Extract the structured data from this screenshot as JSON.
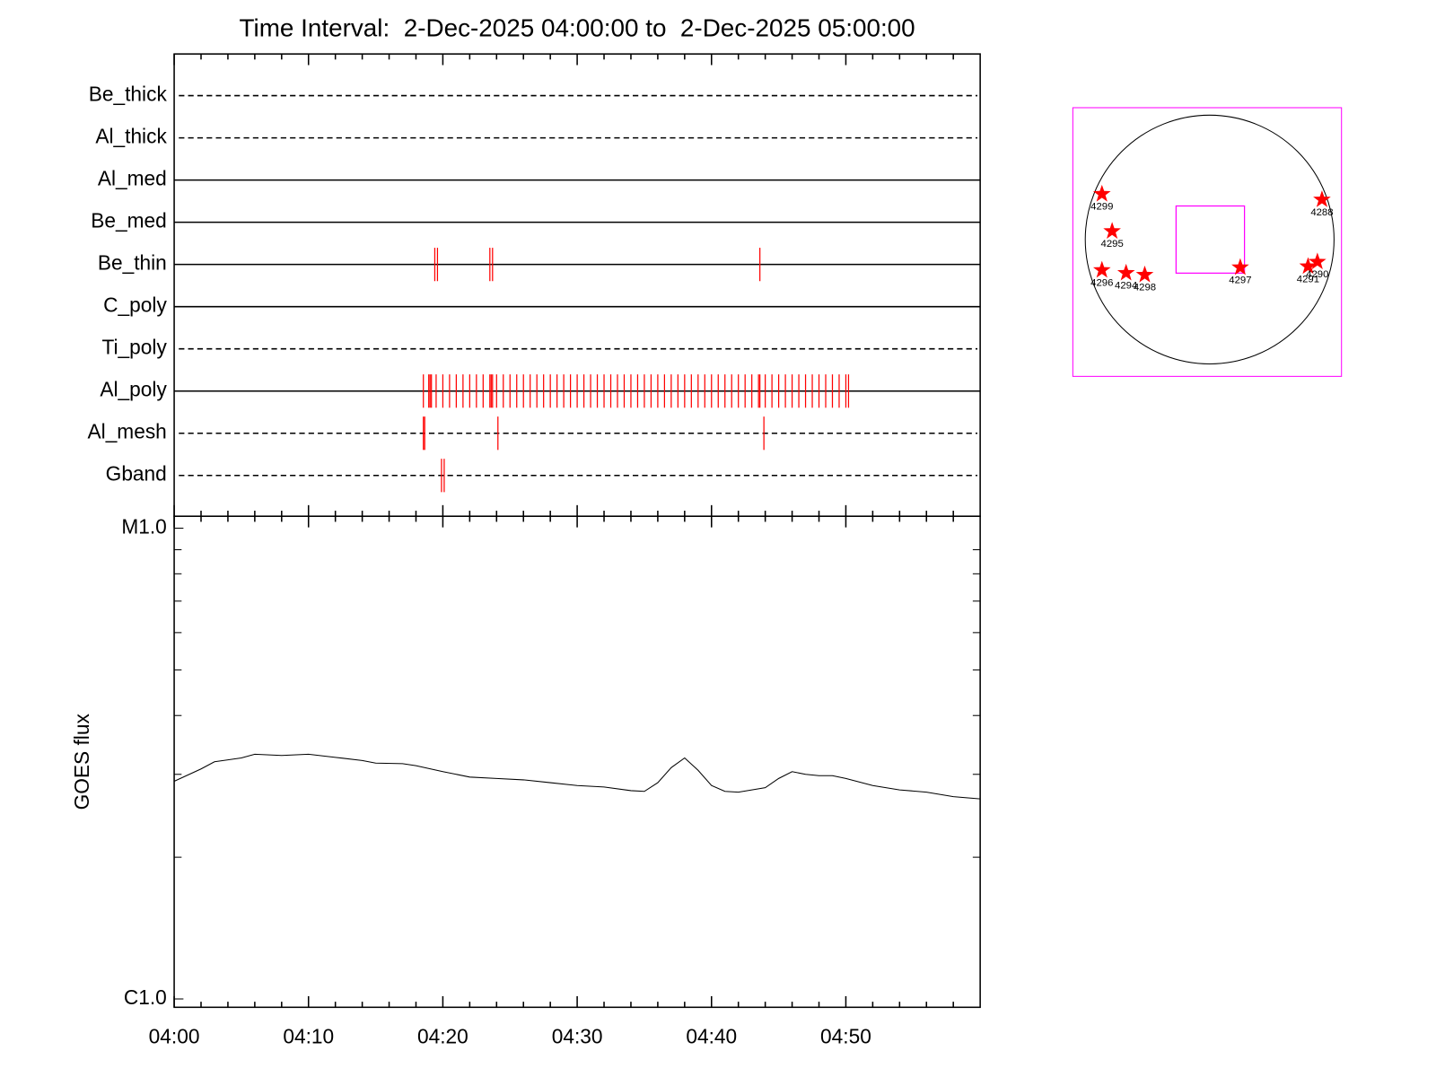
{
  "chart_data": [
    {
      "type": "timeline",
      "title": "Time Interval:  2-Dec-2025 04:00:00 to  2-Dec-2025 05:00:00",
      "xlim": [
        0,
        60
      ],
      "color": "#ff0000",
      "filters": [
        {
          "name": "Be_thick",
          "dashed": true,
          "events": []
        },
        {
          "name": "Al_thick",
          "dashed": true,
          "events": []
        },
        {
          "name": "Al_med",
          "dashed": false,
          "events": []
        },
        {
          "name": "Be_med",
          "dashed": false,
          "events": []
        },
        {
          "name": "Be_thin",
          "dashed": false,
          "events": [
            19.4,
            19.6,
            23.5,
            23.7,
            43.6
          ]
        },
        {
          "name": "C_poly",
          "dashed": false,
          "events": []
        },
        {
          "name": "Ti_poly",
          "dashed": true,
          "events": []
        },
        {
          "name": "Al_poly",
          "dashed": false,
          "events": [
            18.55,
            18.95,
            19.05,
            19.15,
            19.5,
            20.0,
            20.5,
            21.0,
            21.5,
            22.0,
            22.5,
            23.0,
            23.5,
            23.6,
            23.7,
            24.0,
            24.5,
            25.0,
            25.5,
            26.0,
            26.5,
            27.0,
            27.5,
            28.0,
            28.5,
            29.0,
            29.5,
            30.0,
            30.5,
            31.0,
            31.5,
            32.0,
            32.5,
            33.0,
            33.5,
            34.0,
            34.5,
            35.0,
            35.5,
            36.0,
            36.5,
            37.0,
            37.5,
            38.0,
            38.5,
            39.0,
            39.5,
            40.0,
            40.5,
            41.0,
            41.5,
            42.0,
            42.5,
            43.0,
            43.5,
            43.6,
            44.0,
            44.5,
            45.0,
            45.5,
            46.0,
            46.5,
            47.0,
            47.5,
            48.0,
            48.5,
            49.0,
            49.5,
            50.0,
            50.2
          ]
        },
        {
          "name": "Al_mesh",
          "dashed": true,
          "events": [
            18.55,
            18.65,
            24.1,
            43.9
          ]
        },
        {
          "name": "Gband",
          "dashed": true,
          "events": [
            19.9,
            20.1
          ]
        }
      ]
    },
    {
      "type": "line",
      "y_label": "GOES flux",
      "log_y": true,
      "color": "#000000",
      "xlim": [
        0,
        60
      ],
      "xticks": [
        {
          "value": 0,
          "label": "04:00"
        },
        {
          "value": 10,
          "label": "04:10"
        },
        {
          "value": 20,
          "label": "04:20"
        },
        {
          "value": 30,
          "label": "04:30"
        },
        {
          "value": 40,
          "label": "04:40"
        },
        {
          "value": 50,
          "label": "04:50"
        }
      ],
      "minor_xticks": [
        2,
        4,
        6,
        8,
        12,
        14,
        16,
        18,
        22,
        24,
        26,
        28,
        32,
        34,
        36,
        38,
        42,
        44,
        46,
        48,
        52,
        54,
        56,
        58
      ],
      "ylim": [
        9.6e-07,
        1.06e-05
      ],
      "yticks": [
        {
          "value": 1e-06,
          "label": "C1.0"
        },
        {
          "value": 1e-05,
          "label": "M1.0"
        }
      ],
      "minor_yticks": [
        2e-06,
        3e-06,
        4e-06,
        5e-06,
        6e-06,
        7e-06,
        8e-06,
        9e-06
      ],
      "x": [
        0,
        2,
        3,
        5,
        6,
        8,
        10,
        12,
        14,
        15,
        17,
        18,
        20,
        22,
        24,
        26,
        28,
        30,
        32,
        34,
        35,
        36,
        37,
        38,
        39,
        40,
        41,
        42,
        44,
        45,
        46,
        47,
        48,
        49,
        50,
        52,
        54,
        56,
        58,
        60
      ],
      "values": [
        2.9e-06,
        3.08e-06,
        3.19e-06,
        3.25e-06,
        3.31e-06,
        3.29e-06,
        3.31e-06,
        3.26e-06,
        3.21e-06,
        3.17e-06,
        3.16e-06,
        3.13e-06,
        3.04e-06,
        2.96e-06,
        2.94e-06,
        2.92e-06,
        2.88e-06,
        2.84e-06,
        2.82e-06,
        2.77e-06,
        2.76e-06,
        2.88e-06,
        3.1e-06,
        3.25e-06,
        3.06e-06,
        2.84e-06,
        2.76e-06,
        2.75e-06,
        2.81e-06,
        2.94e-06,
        3.04e-06,
        3e-06,
        2.98e-06,
        2.98e-06,
        2.94e-06,
        2.84e-06,
        2.78e-06,
        2.75e-06,
        2.69e-06,
        2.66e-06
      ]
    },
    {
      "type": "scatter",
      "xlim": [
        -1.1,
        1.06
      ],
      "ylim": [
        -1.1,
        1.06
      ],
      "disk_radius": 1,
      "color": "#ff0000",
      "box_color": "#ff00ff",
      "fov": [
        -0.27,
        0.27,
        0.28,
        -0.27
      ],
      "labels": [
        "4299",
        "4288",
        "4295",
        "4296",
        "4294",
        "4298",
        "4297",
        "4291",
        "4290"
      ],
      "x": [
        -0.866,
        0.903,
        -0.784,
        -0.866,
        -0.672,
        -0.522,
        0.246,
        0.791,
        0.866
      ],
      "y": [
        0.366,
        0.321,
        0.067,
        -0.246,
        -0.269,
        -0.284,
        -0.224,
        -0.216,
        -0.179
      ]
    }
  ]
}
